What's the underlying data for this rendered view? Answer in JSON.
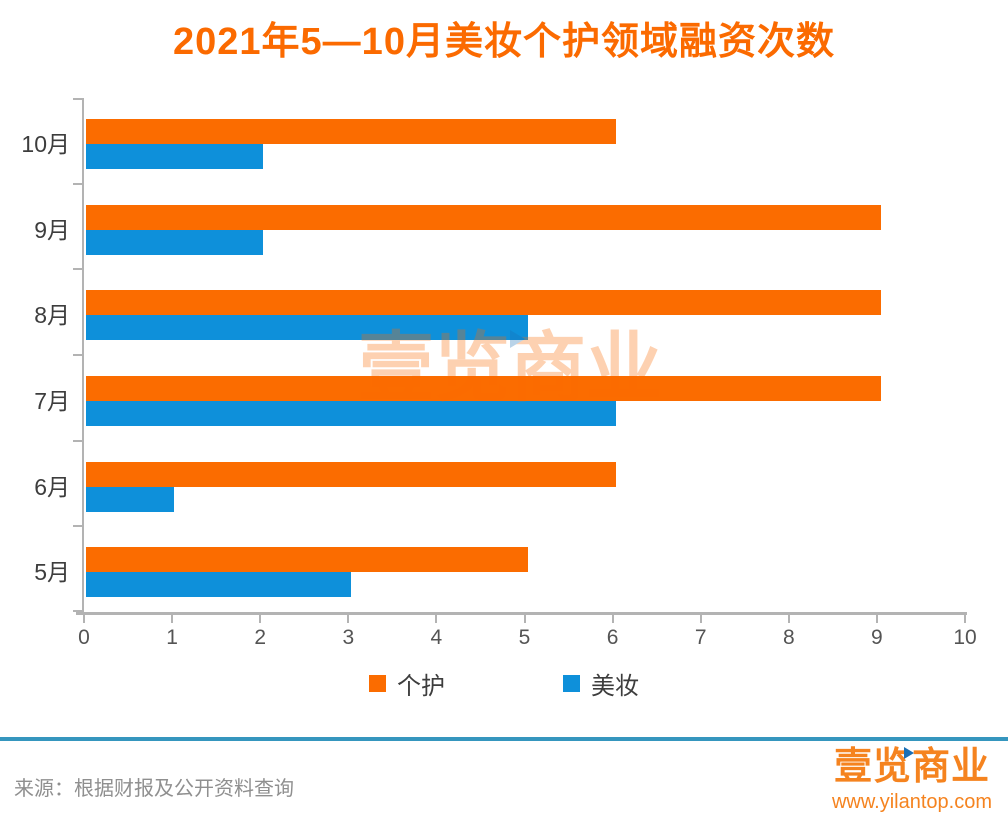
{
  "header": {
    "title": "2021年5—10月美妆个护领域融资次数"
  },
  "chart_data": {
    "type": "bar",
    "orientation": "horizontal",
    "title": "2021年5—10月美妆个护领域融资次数",
    "categories": [
      "10月",
      "9月",
      "8月",
      "7月",
      "6月",
      "5月"
    ],
    "series": [
      {
        "name": "个护",
        "color": "#fb6c00",
        "values": [
          6,
          9,
          9,
          9,
          6,
          5
        ]
      },
      {
        "name": "美妆",
        "color": "#0e90da",
        "values": [
          2,
          2,
          5,
          6,
          1,
          3
        ]
      }
    ],
    "xlim": [
      0,
      10
    ],
    "xticks": [
      0,
      1,
      2,
      3,
      4,
      5,
      6,
      7,
      8,
      9,
      10
    ],
    "grid": false,
    "legend_position": "bottom-center",
    "ylabel": "",
    "xlabel": ""
  },
  "colors": {
    "title_orange": "#fb6a00",
    "series_personal_care": "#fb6c00",
    "series_beauty": "#0e90da",
    "axis_gray": "#b3b3b3",
    "divider_blue": "#3596be",
    "category_text": "#3d3d3d",
    "source_text": "#8f8f8f",
    "logo_orange": "#f5831f",
    "logo_flag_blue": "#1a6fb5"
  },
  "watermark": {
    "text": "壹览商业"
  },
  "footer": {
    "source": "来源：根据财报及公开资料查询"
  },
  "logo": {
    "name": "壹览商业",
    "url": "www.yilantop.com"
  }
}
